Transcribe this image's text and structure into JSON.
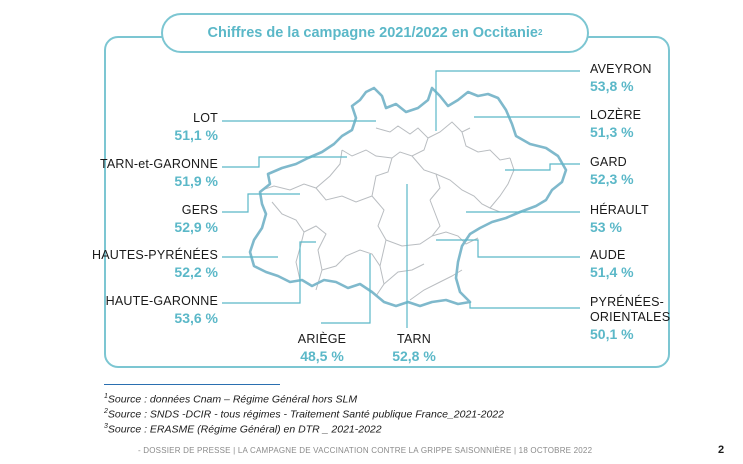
{
  "title": {
    "text": "Chiffres de la campagne 2021/2022 en Occitanie",
    "note": "2"
  },
  "departments": {
    "lot": {
      "name": "LOT",
      "value": "51,1 %"
    },
    "tarn_et_garonne": {
      "name": "TARN-et-GARONNE",
      "value": "51,9 %"
    },
    "gers": {
      "name": "GERS",
      "value": "52,9 %"
    },
    "hautes_pyrenees": {
      "name": "HAUTES-PYRÉNÉES",
      "value": "52,2 %"
    },
    "haute_garonne": {
      "name": "HAUTE-GARONNE",
      "value": "53,6 %"
    },
    "ariege": {
      "name": "ARIÈGE",
      "value": "48,5 %"
    },
    "tarn": {
      "name": "TARN",
      "value": "52,8 %"
    },
    "aveyron": {
      "name": "AVEYRON",
      "value": "53,8 %"
    },
    "lozere": {
      "name": "LOZÈRE",
      "value": "51,3 %"
    },
    "gard": {
      "name": "GARD",
      "value": "52,3 %"
    },
    "herault": {
      "name": "HÉRAULT",
      "value": "53 %"
    },
    "aude": {
      "name": "AUDE",
      "value": "51,4 %"
    },
    "pyrenees_orientales": {
      "name_line1": "PYRÉNÉES-",
      "name_line2": "ORIENTALES",
      "value": "50,1 %"
    }
  },
  "sources": [
    {
      "num": "1",
      "text": "Source : données Cnam – Régime Général hors SLM"
    },
    {
      "num": "2",
      "text": "Source : SNDS -DCIR - tous régimes - Traitement Santé publique France_2021-2022"
    },
    {
      "num": "3",
      "text": "Source : ERASME (Régime Général) en DTR _ 2021-2022"
    }
  ],
  "footer": "- DOSSIER DE PRESSE | LA CAMPAGNE DE VACCINATION CONTRE LA GRIPPE SAISONNIÈRE | 18 OCTOBRE 2022",
  "page_number": "2",
  "colors": {
    "accent": "#7cc6d2",
    "value_text": "#5bb8c8",
    "leader": "#5bb8c8",
    "border": "#9aa0a6"
  }
}
